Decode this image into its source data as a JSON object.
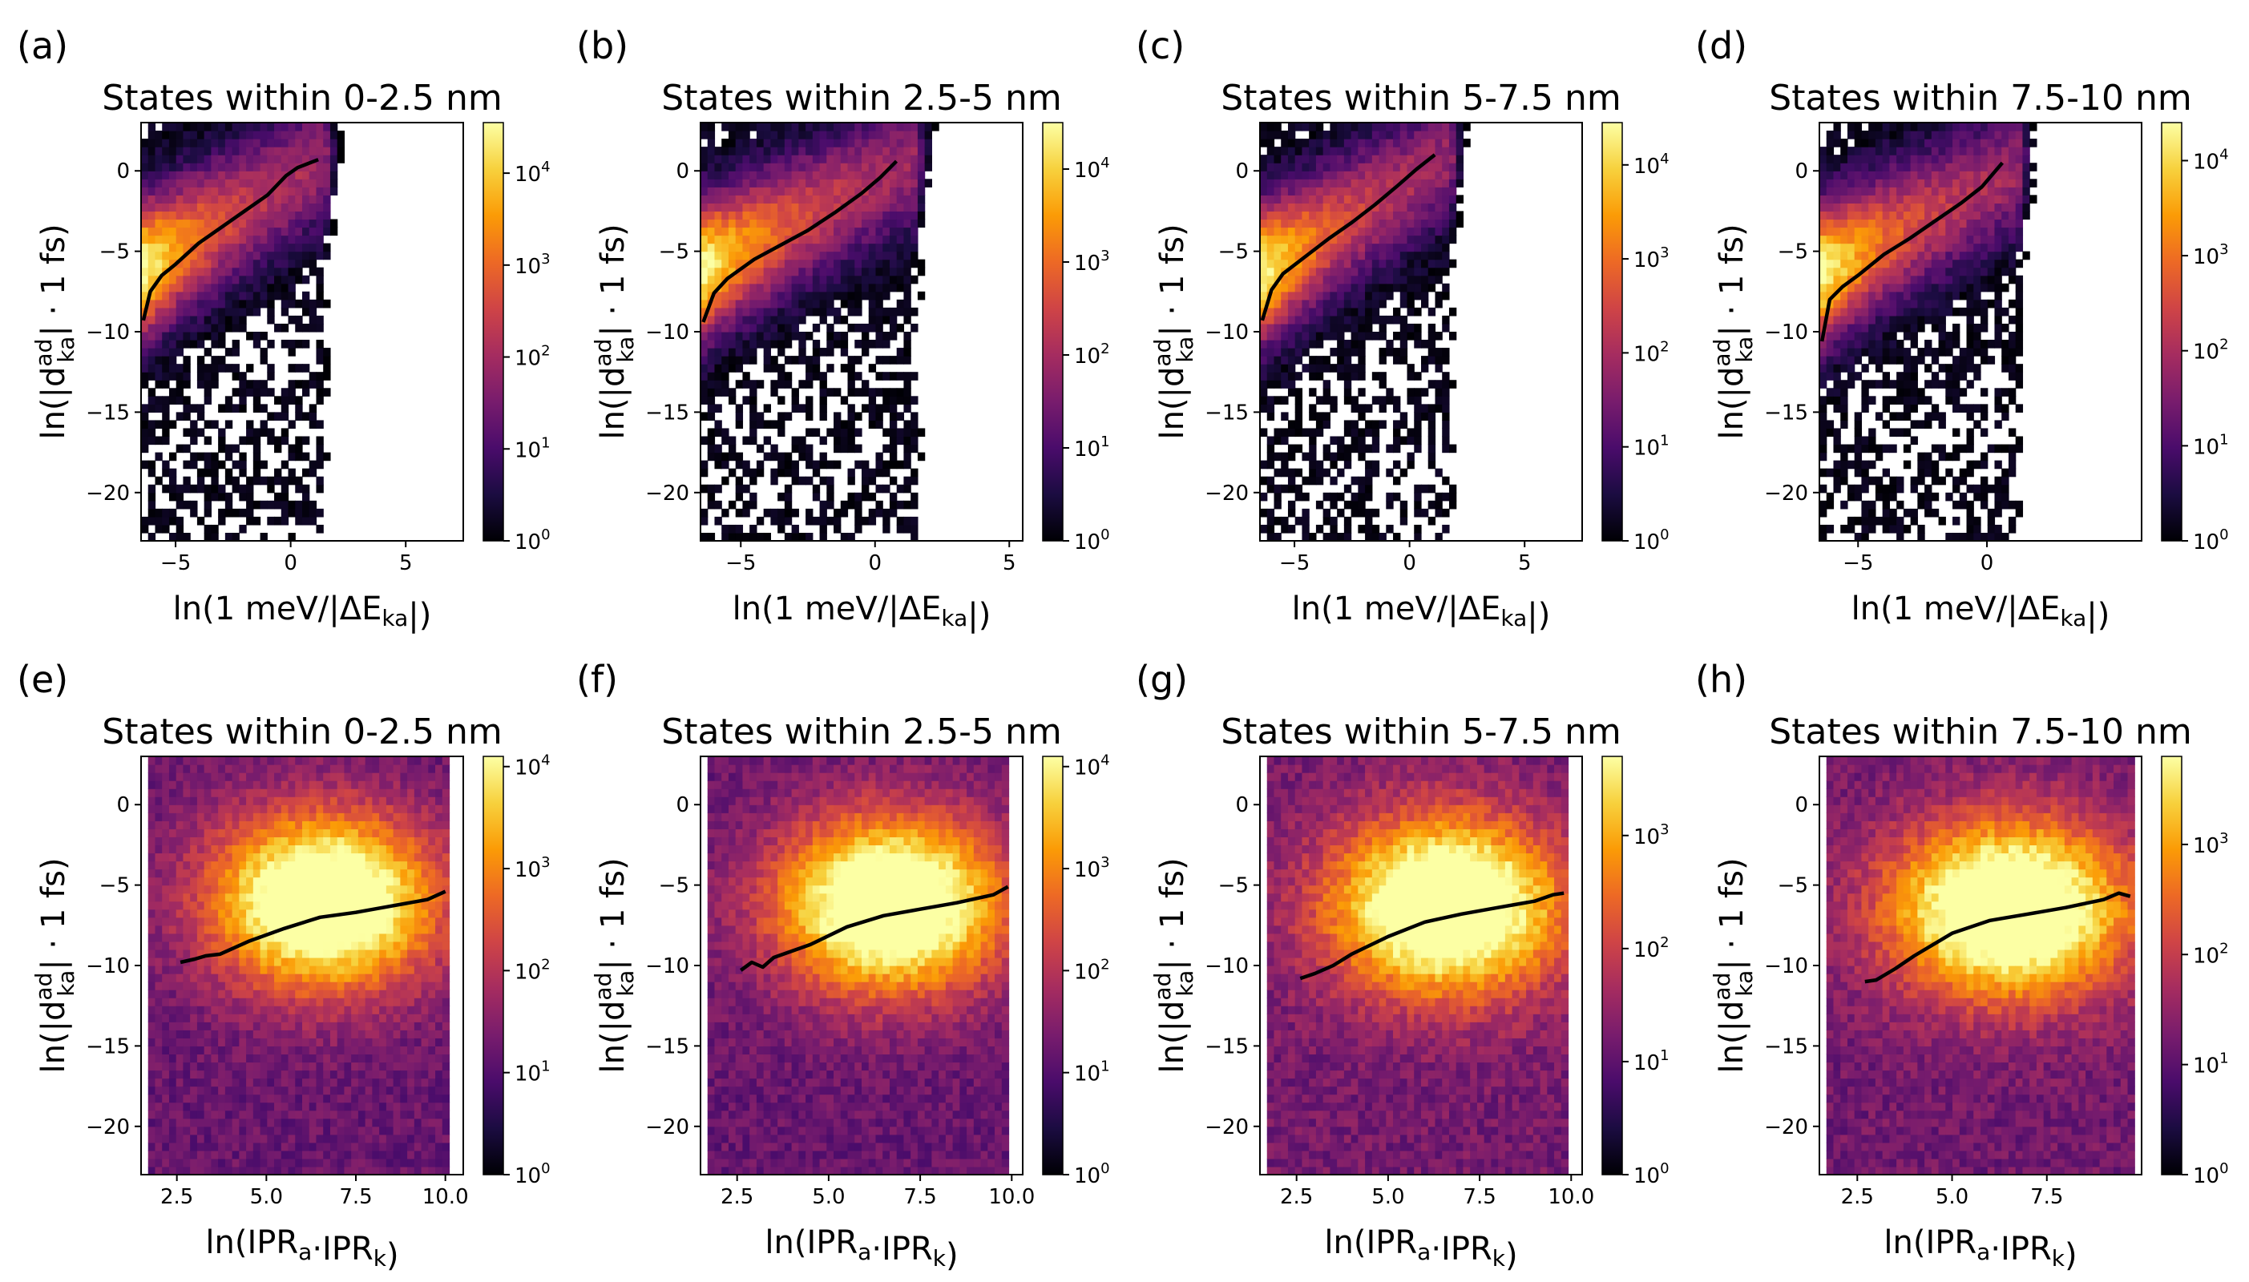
{
  "figure": {
    "colormap": "inferno",
    "colors": {
      "background": "#ffffff",
      "median_line": "#000000",
      "colormap_stops": [
        "#000004",
        "#1b0c41",
        "#4a0c6b",
        "#781c6d",
        "#a52c60",
        "#cf4446",
        "#ed6925",
        "#fb9b06",
        "#f7d13d",
        "#fcffa4"
      ]
    }
  },
  "chart_data": [
    {
      "id": "a",
      "type": "heatmap",
      "panel_label": "(a)",
      "title": "States within 0-2.5 nm",
      "xlabel": "ln(1 meV/|ΔE_ka|)",
      "ylabel": "ln(|d^ad_ka| · 1 fs)",
      "xlim": [
        -6.5,
        7.5
      ],
      "ylim": [
        -23,
        3
      ],
      "xticks": [
        -5,
        0,
        5
      ],
      "yticks": [
        -20,
        -15,
        -10,
        -5,
        0
      ],
      "colorbar": {
        "min_exp": 0,
        "max_exp": 4.55,
        "tick_exps": [
          0,
          1,
          2,
          3,
          4
        ],
        "tick_labels": [
          "10",
          "10",
          "10",
          "10",
          "10"
        ],
        "tick_sups": [
          "0",
          "1",
          "2",
          "3",
          "4"
        ]
      },
      "median_line": {
        "x": [
          -6.4,
          -6.1,
          -5.6,
          -5.0,
          -4.0,
          -3.0,
          -2.0,
          -1.0,
          -0.2,
          0.3,
          1.2
        ],
        "y": [
          -9.3,
          -7.5,
          -6.5,
          -5.8,
          -4.5,
          -3.5,
          -2.5,
          -1.5,
          -0.3,
          0.2,
          0.7
        ]
      },
      "density": {
        "family": "energy",
        "x0": -0.6,
        "slope": 0.85,
        "width": 3.0,
        "peak_x": -6.3,
        "x_decay": 0.3,
        "x_max": 1.5
      }
    },
    {
      "id": "b",
      "type": "heatmap",
      "panel_label": "(b)",
      "title": "States within 2.5-5 nm",
      "xlabel": "ln(1 meV/|ΔE_ka|)",
      "ylabel": "ln(|d^ad_ka| · 1 fs)",
      "xlim": [
        -6.5,
        5.5
      ],
      "ylim": [
        -23,
        3
      ],
      "xticks": [
        -5,
        0,
        5
      ],
      "yticks": [
        -20,
        -15,
        -10,
        -5,
        0
      ],
      "colorbar": {
        "min_exp": 0,
        "max_exp": 4.5,
        "tick_exps": [
          0,
          1,
          2,
          3,
          4
        ],
        "tick_labels": [
          "10",
          "10",
          "10",
          "10",
          "10"
        ],
        "tick_sups": [
          "0",
          "1",
          "2",
          "3",
          "4"
        ]
      },
      "median_line": {
        "x": [
          -6.4,
          -6.0,
          -5.5,
          -4.5,
          -3.5,
          -2.5,
          -1.5,
          -0.5,
          0.2,
          0.8
        ],
        "y": [
          -9.4,
          -7.6,
          -6.7,
          -5.5,
          -4.6,
          -3.7,
          -2.6,
          -1.4,
          -0.4,
          0.6
        ]
      },
      "density": {
        "family": "energy",
        "x0": -0.6,
        "slope": 0.85,
        "width": 3.0,
        "peak_x": -6.3,
        "x_decay": 0.3,
        "x_max": 1.5
      }
    },
    {
      "id": "c",
      "type": "heatmap",
      "panel_label": "(c)",
      "title": "States within 5-7.5 nm",
      "xlabel": "ln(1 meV/|ΔE_ka|)",
      "ylabel": "ln(|d^ad_ka| · 1 fs)",
      "xlim": [
        -6.5,
        7.5
      ],
      "ylim": [
        -23,
        3
      ],
      "xticks": [
        -5,
        0,
        5
      ],
      "yticks": [
        -20,
        -15,
        -10,
        -5,
        0
      ],
      "colorbar": {
        "min_exp": 0,
        "max_exp": 4.45,
        "tick_exps": [
          0,
          1,
          2,
          3,
          4
        ],
        "tick_labels": [
          "10",
          "10",
          "10",
          "10",
          "10"
        ],
        "tick_sups": [
          "0",
          "1",
          "2",
          "3",
          "4"
        ]
      },
      "median_line": {
        "x": [
          -6.4,
          -6.0,
          -5.5,
          -4.5,
          -3.5,
          -2.5,
          -1.5,
          -0.5,
          0.3,
          1.1
        ],
        "y": [
          -9.3,
          -7.4,
          -6.4,
          -5.3,
          -4.2,
          -3.2,
          -2.1,
          -0.9,
          0.1,
          1.0
        ]
      },
      "density": {
        "family": "energy",
        "x0": -0.6,
        "slope": 0.9,
        "width": 3.0,
        "peak_x": -6.3,
        "x_decay": 0.3,
        "x_max": 1.8
      }
    },
    {
      "id": "d",
      "type": "heatmap",
      "panel_label": "(d)",
      "title": "States within 7.5-10 nm",
      "xlabel": "ln(1 meV/|ΔE_ka|)",
      "ylabel": "ln(|d^ad_ka| · 1 fs)",
      "xlim": [
        -6.5,
        6.0
      ],
      "ylim": [
        -23,
        3
      ],
      "xticks": [
        -5,
        0
      ],
      "yticks": [
        -20,
        -15,
        -10,
        -5,
        0
      ],
      "colorbar": {
        "min_exp": 0,
        "max_exp": 4.4,
        "tick_exps": [
          0,
          1,
          2,
          3,
          4
        ],
        "tick_labels": [
          "10",
          "10",
          "10",
          "10",
          "10"
        ],
        "tick_sups": [
          "0",
          "1",
          "2",
          "3",
          "4"
        ]
      },
      "median_line": {
        "x": [
          -6.4,
          -6.1,
          -5.6,
          -5.0,
          -4.0,
          -3.0,
          -2.0,
          -1.0,
          -0.2,
          0.6
        ],
        "y": [
          -10.6,
          -8.0,
          -7.2,
          -6.5,
          -5.2,
          -4.2,
          -3.1,
          -2.0,
          -1.0,
          0.5
        ]
      },
      "density": {
        "family": "energy",
        "x0": -0.9,
        "slope": 0.85,
        "width": 3.0,
        "peak_x": -6.3,
        "x_decay": 0.3,
        "x_max": 1.2
      }
    },
    {
      "id": "e",
      "type": "heatmap",
      "panel_label": "(e)",
      "title": "States within 0-2.5 nm",
      "xlabel": "ln(IPR_a·IPR_k)",
      "ylabel": "ln(|d^ad_ka| · 1 fs)",
      "xlim": [
        1.5,
        10.5
      ],
      "ylim": [
        -23,
        3
      ],
      "xticks": [
        2.5,
        5.0,
        7.5,
        10.0
      ],
      "yticks": [
        -20,
        -15,
        -10,
        -5,
        0
      ],
      "colorbar": {
        "min_exp": 0,
        "max_exp": 4.1,
        "tick_exps": [
          0,
          1,
          2,
          3,
          4
        ],
        "tick_labels": [
          "10",
          "10",
          "10",
          "10",
          "10"
        ],
        "tick_sups": [
          "0",
          "1",
          "2",
          "3",
          "4"
        ]
      },
      "median_line": {
        "x": [
          2.6,
          3.0,
          3.3,
          3.7,
          4.5,
          5.5,
          6.5,
          7.5,
          8.5,
          9.5,
          10.0
        ],
        "y": [
          -9.8,
          -9.6,
          -9.4,
          -9.3,
          -8.5,
          -7.7,
          -7.0,
          -6.7,
          -6.3,
          -5.9,
          -5.4
        ]
      },
      "density": {
        "family": "ipr",
        "cx": 6.6,
        "cy": -6.0,
        "sx": 2.2,
        "sy": 3.8,
        "x_min": 1.6,
        "x_max": 10.2
      }
    },
    {
      "id": "f",
      "type": "heatmap",
      "panel_label": "(f)",
      "title": "States within 2.5-5 nm",
      "xlabel": "ln(IPR_a·IPR_k)",
      "ylabel": "ln(|d^ad_ka| · 1 fs)",
      "xlim": [
        1.5,
        10.3
      ],
      "ylim": [
        -23,
        3
      ],
      "xticks": [
        2.5,
        5.0,
        7.5,
        10.0
      ],
      "yticks": [
        -20,
        -15,
        -10,
        -5,
        0
      ],
      "colorbar": {
        "min_exp": 0,
        "max_exp": 4.1,
        "tick_exps": [
          0,
          1,
          2,
          3,
          4
        ],
        "tick_labels": [
          "10",
          "10",
          "10",
          "10",
          "10"
        ],
        "tick_sups": [
          "0",
          "1",
          "2",
          "3",
          "4"
        ]
      },
      "median_line": {
        "x": [
          2.6,
          2.9,
          3.2,
          3.5,
          4.5,
          5.5,
          6.5,
          7.5,
          8.5,
          9.5,
          9.9
        ],
        "y": [
          -10.3,
          -9.8,
          -10.1,
          -9.5,
          -8.7,
          -7.6,
          -6.9,
          -6.5,
          -6.1,
          -5.6,
          -5.1
        ]
      },
      "density": {
        "family": "ipr",
        "cx": 6.7,
        "cy": -6.2,
        "sx": 2.2,
        "sy": 3.8,
        "x_min": 1.6,
        "x_max": 10.0
      }
    },
    {
      "id": "g",
      "type": "heatmap",
      "panel_label": "(g)",
      "title": "States within 5-7.5 nm",
      "xlabel": "ln(IPR_a·IPR_k)",
      "ylabel": "ln(|d^ad_ka| · 1 fs)",
      "xlim": [
        1.5,
        10.3
      ],
      "ylim": [
        -23,
        3
      ],
      "xticks": [
        2.5,
        5.0,
        7.5,
        10.0
      ],
      "yticks": [
        -20,
        -15,
        -10,
        -5,
        0
      ],
      "colorbar": {
        "min_exp": 0,
        "max_exp": 3.7,
        "tick_exps": [
          0,
          1,
          2,
          3
        ],
        "tick_labels": [
          "10",
          "10",
          "10",
          "10"
        ],
        "tick_sups": [
          "0",
          "1",
          "2",
          "3"
        ]
      },
      "median_line": {
        "x": [
          2.6,
          3.0,
          3.5,
          4.0,
          5.0,
          6.0,
          7.0,
          8.0,
          9.0,
          9.5,
          9.8
        ],
        "y": [
          -10.8,
          -10.5,
          -10.0,
          -9.3,
          -8.2,
          -7.3,
          -6.8,
          -6.4,
          -6.0,
          -5.6,
          -5.5
        ]
      },
      "density": {
        "family": "ipr",
        "cx": 6.6,
        "cy": -6.3,
        "sx": 2.2,
        "sy": 3.8,
        "x_min": 1.6,
        "x_max": 10.0
      }
    },
    {
      "id": "h",
      "type": "heatmap",
      "panel_label": "(h)",
      "title": "States within 7.5-10 nm",
      "xlabel": "ln(IPR_a·IPR_k)",
      "ylabel": "ln(|d^ad_ka| · 1 fs)",
      "xlim": [
        1.5,
        10.0
      ],
      "ylim": [
        -23,
        3
      ],
      "xticks": [
        2.5,
        5.0,
        7.5
      ],
      "yticks": [
        -20,
        -15,
        -10,
        -5,
        0
      ],
      "colorbar": {
        "min_exp": 0,
        "max_exp": 3.8,
        "tick_exps": [
          0,
          1,
          2,
          3
        ],
        "tick_labels": [
          "10",
          "10",
          "10",
          "10"
        ],
        "tick_sups": [
          "0",
          "1",
          "2",
          "3"
        ]
      },
      "median_line": {
        "x": [
          2.7,
          3.0,
          3.5,
          4.0,
          5.0,
          6.0,
          7.0,
          8.0,
          9.0,
          9.4,
          9.7
        ],
        "y": [
          -11.0,
          -10.9,
          -10.2,
          -9.4,
          -8.0,
          -7.2,
          -6.8,
          -6.4,
          -5.9,
          -5.5,
          -5.7
        ]
      },
      "density": {
        "family": "ipr",
        "cx": 6.5,
        "cy": -6.5,
        "sx": 2.2,
        "sy": 3.8,
        "x_min": 1.7,
        "x_max": 9.8
      }
    }
  ]
}
